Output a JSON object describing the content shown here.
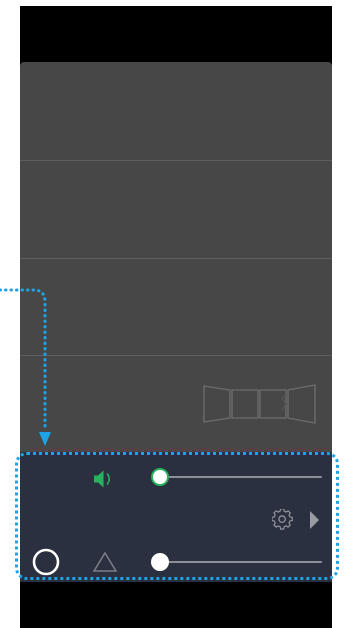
{
  "colors": {
    "panel": "#474747",
    "control_bg": "#2b3040",
    "accent_green": "#27b35d",
    "highlight": "#1ea4e6",
    "track": "#8d8f97"
  },
  "icons": {
    "panorama": "panorama-segments-icon",
    "volume": "speaker-volume-icon",
    "settings": "gear-icon",
    "play": "play-triangle-icon",
    "circle": "circle-icon",
    "triangle": "triangle-outline-icon"
  },
  "controls": {
    "volume_slider": {
      "value": 0
    },
    "second_slider": {
      "value": 0
    }
  }
}
